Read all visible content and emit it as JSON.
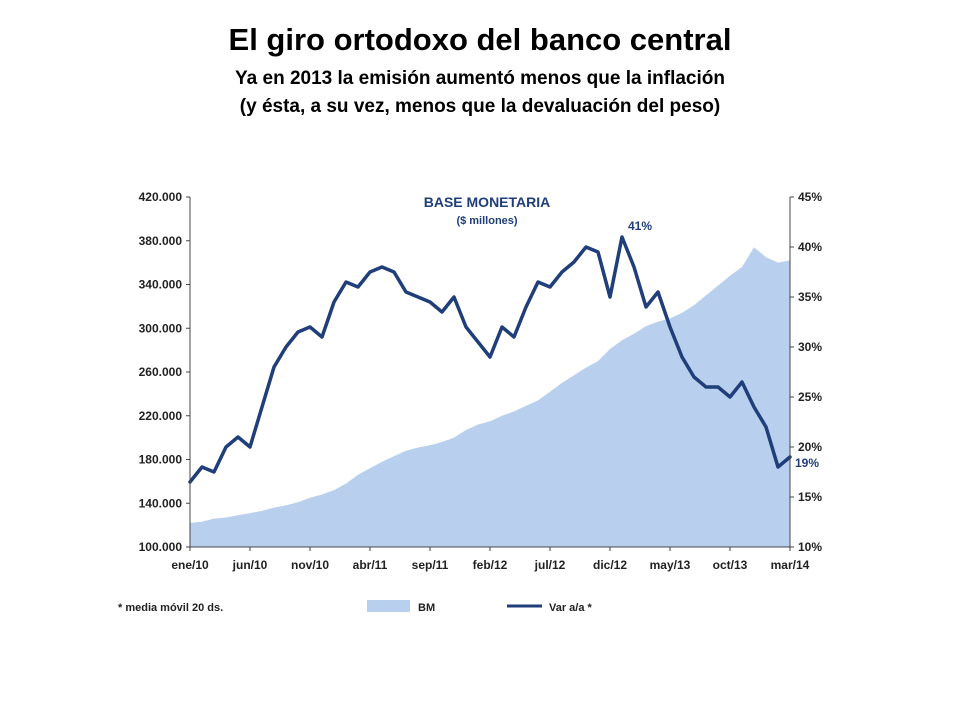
{
  "slide": {
    "title": "El giro ortodoxo del banco central",
    "subtitle_line1": "Ya en 2013 la emisión aumentó menos que la inflación",
    "subtitle_line2": "(y ésta, a su vez, menos que la devaluación del peso)"
  },
  "chart_data": {
    "type": "area+line",
    "title": "BASE MONETARIA",
    "subtitle": "($ millones)",
    "note": "* media móvil 20 ds.",
    "x_tick_labels": [
      "ene/10",
      "jun/10",
      "nov/10",
      "abr/11",
      "sep/11",
      "feb/12",
      "jul/12",
      "dic/12",
      "may/13",
      "oct/13",
      "mar/14"
    ],
    "y_left": {
      "ticks": [
        "100.000",
        "140.000",
        "180.000",
        "220.000",
        "260.000",
        "300.000",
        "340.000",
        "380.000",
        "420.000"
      ],
      "range": [
        100000,
        420000
      ]
    },
    "y_right": {
      "ticks": [
        "10%",
        "15%",
        "20%",
        "25%",
        "30%",
        "35%",
        "40%",
        "45%"
      ],
      "range": [
        10,
        45
      ]
    },
    "grid": false,
    "legend_position": "bottom",
    "annotations": [
      "41%",
      "19%"
    ],
    "colors": {
      "area": "#b9cfee",
      "line": "#1f3e7a"
    },
    "x_month_index": [
      0,
      1,
      2,
      3,
      4,
      5,
      6,
      7,
      8,
      9,
      10,
      11,
      12,
      13,
      14,
      15,
      16,
      17,
      18,
      19,
      20,
      21,
      22,
      23,
      24,
      25,
      26,
      27,
      28,
      29,
      30,
      31,
      32,
      33,
      34,
      35,
      36,
      37,
      38,
      39,
      40,
      41,
      42,
      43,
      44,
      45,
      46,
      47,
      48,
      49,
      50
    ],
    "series": [
      {
        "name": "BM",
        "axis": "left",
        "style": "area",
        "values": [
          122000,
          123000,
          126000,
          127000,
          129000,
          131000,
          133000,
          136000,
          138000,
          141000,
          145000,
          148000,
          152000,
          158000,
          166000,
          172000,
          178000,
          183000,
          188000,
          191000,
          193000,
          196000,
          200000,
          207000,
          212000,
          215000,
          220000,
          224000,
          229000,
          234000,
          242000,
          250000,
          257000,
          264000,
          270000,
          281000,
          289000,
          295000,
          302000,
          306000,
          309000,
          314000,
          321000,
          330000,
          339000,
          348000,
          356000,
          374000,
          365000,
          360000,
          362000
        ]
      },
      {
        "name": "Var a/a *",
        "axis": "right",
        "style": "line",
        "values": [
          16.5,
          18.0,
          17.5,
          20.0,
          21.0,
          20.0,
          24.0,
          28.0,
          30.0,
          31.5,
          32.0,
          31.0,
          34.5,
          36.5,
          36.0,
          37.5,
          38.0,
          37.5,
          35.5,
          35.0,
          34.5,
          33.5,
          35.0,
          32.0,
          30.5,
          29.0,
          32.0,
          31.0,
          34.0,
          36.5,
          36.0,
          37.5,
          38.5,
          40.0,
          39.5,
          35.0,
          41.0,
          38.0,
          34.0,
          35.5,
          32.0,
          29.0,
          27.0,
          26.0,
          26.0,
          25.0,
          26.5,
          24.0,
          22.0,
          18.0,
          19.0
        ]
      }
    ]
  }
}
